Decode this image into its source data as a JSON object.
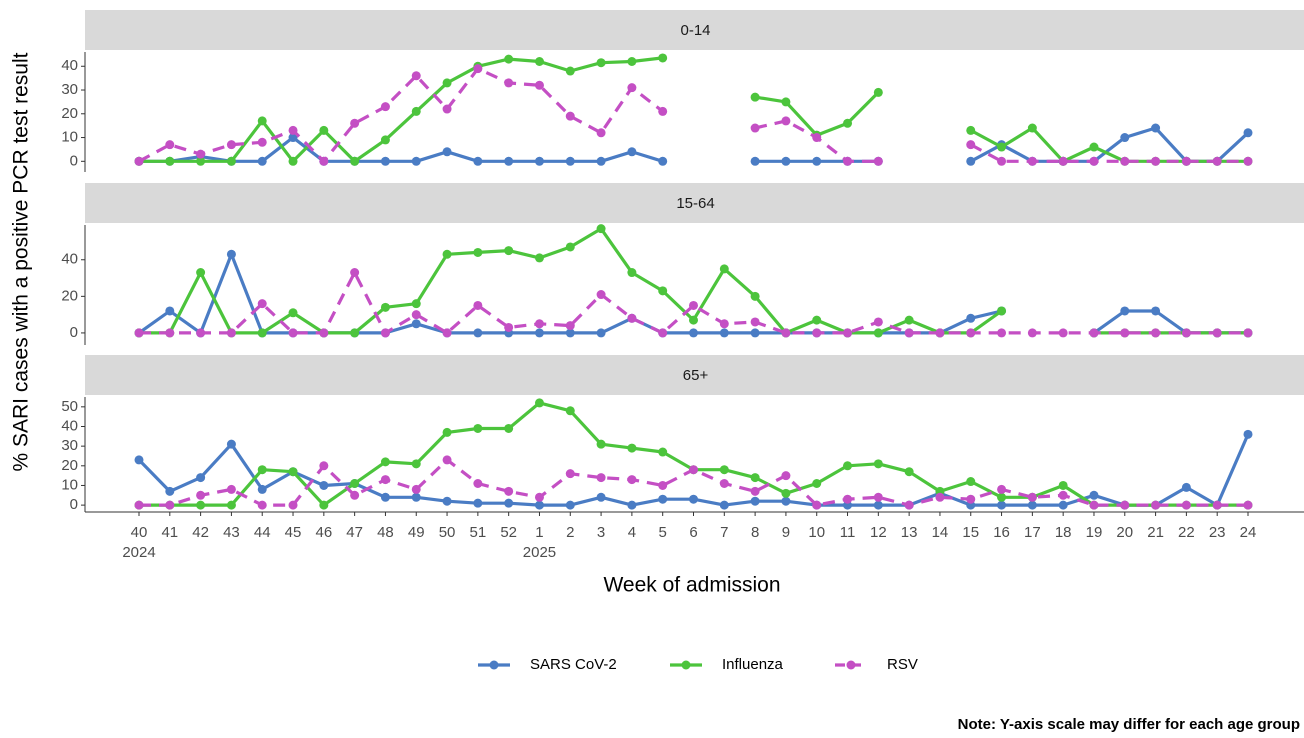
{
  "chart_data": {
    "type": "line",
    "categories": [
      "40",
      "41",
      "42",
      "43",
      "44",
      "45",
      "46",
      "47",
      "48",
      "49",
      "50",
      "51",
      "52",
      "1",
      "2",
      "3",
      "4",
      "5",
      "6",
      "7",
      "8",
      "9",
      "10",
      "11",
      "12",
      "13",
      "14",
      "15",
      "16",
      "17",
      "18",
      "19",
      "20",
      "21",
      "22",
      "23",
      "24"
    ],
    "x_sublabels": [
      {
        "category": "40",
        "label": "2024"
      },
      {
        "category": "1",
        "label": "2025"
      }
    ],
    "xlabel": "Week of admission",
    "ylabel": "% SARI cases with a positive PCR test result",
    "note": "Note: Y-axis scale may differ for each age group",
    "legend": [
      {
        "name": "SARS CoV-2",
        "color": "#4a7cc4",
        "dashed": false
      },
      {
        "name": "Influenza",
        "color": "#4cc43c",
        "dashed": false
      },
      {
        "name": "RSV",
        "color": "#c44fc4",
        "dashed": true
      }
    ],
    "panels": [
      {
        "title": "0-14",
        "ylim": [
          -4.5,
          46
        ],
        "yticks": [
          0,
          10,
          20,
          30,
          40
        ],
        "series": [
          {
            "values": [
              0,
              0,
              2,
              0,
              0,
              10,
              0,
              0,
              0,
              0,
              4,
              0,
              0,
              0,
              0,
              0,
              4,
              0,
              null,
              null,
              0,
              0,
              0,
              0,
              0,
              null,
              null,
              0,
              7,
              0,
              0,
              0,
              10,
              14,
              0,
              0,
              12
            ]
          },
          {
            "values": [
              0,
              0,
              0,
              0,
              17,
              0,
              13,
              0,
              9,
              21,
              33,
              40,
              43,
              42,
              38,
              41.5,
              42,
              43.5,
              null,
              null,
              27,
              25,
              11,
              16,
              29,
              null,
              null,
              13,
              6,
              14,
              0,
              6,
              0,
              0,
              0,
              0,
              0
            ]
          },
          {
            "values": [
              0,
              7,
              3,
              7,
              8,
              13,
              0,
              16,
              23,
              36,
              22,
              39,
              33,
              32,
              19,
              12,
              31,
              21,
              null,
              null,
              14,
              17,
              10,
              0,
              0,
              null,
              null,
              7,
              0,
              0,
              0,
              0,
              0,
              0,
              0,
              0,
              0
            ]
          }
        ]
      },
      {
        "title": "15-64",
        "ylim": [
          -6.6,
          59
        ],
        "yticks": [
          0,
          20,
          40
        ],
        "series": [
          {
            "values": [
              0,
              12,
              0,
              43,
              0,
              0,
              0,
              0,
              0,
              5,
              0,
              0,
              0,
              0,
              0,
              0,
              8,
              0,
              0,
              0,
              0,
              0,
              0,
              0,
              0,
              0,
              0,
              8,
              12,
              null,
              null,
              0,
              12,
              12,
              0,
              0,
              0
            ]
          },
          {
            "values": [
              0,
              0,
              33,
              0,
              0,
              11,
              0,
              0,
              14,
              16,
              43,
              44,
              45,
              41,
              47,
              57,
              33,
              23,
              7,
              35,
              20,
              0,
              7,
              0,
              0,
              7,
              0,
              0,
              12,
              null,
              null,
              0,
              0,
              0,
              0,
              0,
              0
            ]
          },
          {
            "values": [
              0,
              0,
              0,
              0,
              16,
              0,
              0,
              33,
              0,
              10,
              0,
              15,
              3,
              5,
              4,
              21,
              8,
              0,
              15,
              5,
              6,
              0,
              0,
              0,
              6,
              0,
              0,
              0,
              0,
              0,
              0,
              0,
              0,
              0,
              0,
              0,
              0
            ]
          }
        ]
      },
      {
        "title": "65+",
        "ylim": [
          -3.5,
          55
        ],
        "yticks": [
          0,
          10,
          20,
          30,
          40,
          50
        ],
        "series": [
          {
            "values": [
              23,
              7,
              14,
              31,
              8,
              17,
              10,
              11,
              4,
              4,
              2,
              1,
              1,
              0,
              0,
              4,
              0,
              3,
              3,
              0,
              2,
              2,
              0,
              0,
              0,
              0,
              6,
              0,
              0,
              0,
              0,
              5,
              0,
              0,
              9,
              0,
              36
            ]
          },
          {
            "values": [
              0,
              0,
              0,
              0,
              18,
              17,
              0,
              11,
              22,
              21,
              37,
              39,
              39,
              52,
              48,
              31,
              29,
              27,
              18,
              18,
              14,
              6,
              11,
              20,
              21,
              17,
              7,
              12,
              4,
              4,
              10,
              0,
              0,
              0,
              0,
              0,
              0
            ]
          },
          {
            "values": [
              0,
              0,
              5,
              8,
              0,
              0,
              20,
              5,
              13,
              8,
              23,
              11,
              7,
              4,
              16,
              14,
              13,
              10,
              18,
              11,
              7,
              15,
              0,
              3,
              4,
              0,
              4,
              3,
              8,
              4,
              5,
              0,
              0,
              0,
              0,
              0,
              0
            ]
          }
        ]
      }
    ]
  }
}
